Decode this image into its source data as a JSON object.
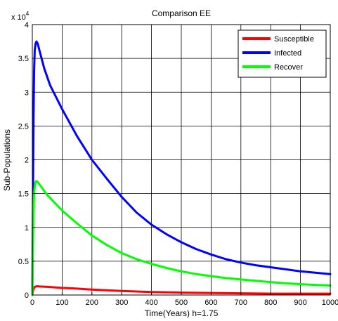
{
  "chart_data": {
    "type": "line",
    "title": "Comparison EE",
    "xlabel": "Time(Years) h=1.75",
    "ylabel": "Sub-Populations",
    "y_multiplier": "x 10",
    "y_multiplier_exp": "4",
    "xlim": [
      0,
      1000
    ],
    "ylim": [
      0,
      4
    ],
    "x_ticks": [
      0,
      100,
      200,
      300,
      400,
      500,
      600,
      700,
      800,
      900,
      1000
    ],
    "y_ticks": [
      0,
      0.5,
      1,
      1.5,
      2,
      2.5,
      3,
      3.5,
      4
    ],
    "x_tick_labels": [
      "0",
      "100",
      "200",
      "300",
      "400",
      "500",
      "600",
      "700",
      "800",
      "900",
      "1000"
    ],
    "y_tick_labels": [
      "0",
      "0.5",
      "1",
      "1.5",
      "2",
      "2.5",
      "3",
      "3.5",
      "4"
    ],
    "grid": true,
    "legend_position": "top-right",
    "series": [
      {
        "name": "Susceptible",
        "color": "#ff0000",
        "points": [
          [
            0,
            0
          ],
          [
            3,
            0.08
          ],
          [
            8,
            0.12
          ],
          [
            15,
            0.13
          ],
          [
            30,
            0.125
          ],
          [
            50,
            0.12
          ],
          [
            100,
            0.105
          ],
          [
            150,
            0.095
          ],
          [
            200,
            0.08
          ],
          [
            300,
            0.06
          ],
          [
            400,
            0.045
          ],
          [
            500,
            0.035
          ],
          [
            600,
            0.03
          ],
          [
            700,
            0.025
          ],
          [
            800,
            0.02
          ],
          [
            900,
            0.02
          ],
          [
            1000,
            0.02
          ]
        ]
      },
      {
        "name": "Infected",
        "color": "#0000ff",
        "points": [
          [
            0,
            0
          ],
          [
            2,
            1.2
          ],
          [
            4,
            2.6
          ],
          [
            6,
            3.3
          ],
          [
            8,
            3.62
          ],
          [
            11,
            3.72
          ],
          [
            14,
            3.75
          ],
          [
            18,
            3.72
          ],
          [
            25,
            3.6
          ],
          [
            40,
            3.35
          ],
          [
            60,
            3.1
          ],
          [
            100,
            2.75
          ],
          [
            150,
            2.35
          ],
          [
            200,
            2.0
          ],
          [
            250,
            1.72
          ],
          [
            300,
            1.45
          ],
          [
            350,
            1.22
          ],
          [
            400,
            1.04
          ],
          [
            450,
            0.9
          ],
          [
            500,
            0.78
          ],
          [
            550,
            0.68
          ],
          [
            600,
            0.6
          ],
          [
            650,
            0.53
          ],
          [
            700,
            0.48
          ],
          [
            750,
            0.44
          ],
          [
            800,
            0.41
          ],
          [
            850,
            0.38
          ],
          [
            900,
            0.35
          ],
          [
            950,
            0.33
          ],
          [
            1000,
            0.31
          ]
        ]
      },
      {
        "name": "Recover",
        "color": "#00ff00",
        "points": [
          [
            0,
            0
          ],
          [
            2,
            0.6
          ],
          [
            4,
            1.2
          ],
          [
            6,
            1.5
          ],
          [
            9,
            1.64
          ],
          [
            12,
            1.68
          ],
          [
            16,
            1.68
          ],
          [
            20,
            1.66
          ],
          [
            30,
            1.6
          ],
          [
            50,
            1.48
          ],
          [
            100,
            1.25
          ],
          [
            150,
            1.06
          ],
          [
            200,
            0.88
          ],
          [
            250,
            0.74
          ],
          [
            300,
            0.62
          ],
          [
            350,
            0.53
          ],
          [
            400,
            0.46
          ],
          [
            450,
            0.4
          ],
          [
            500,
            0.35
          ],
          [
            550,
            0.31
          ],
          [
            600,
            0.28
          ],
          [
            650,
            0.25
          ],
          [
            700,
            0.23
          ],
          [
            750,
            0.21
          ],
          [
            800,
            0.19
          ],
          [
            850,
            0.175
          ],
          [
            900,
            0.16
          ],
          [
            950,
            0.15
          ],
          [
            1000,
            0.14
          ]
        ]
      }
    ]
  }
}
